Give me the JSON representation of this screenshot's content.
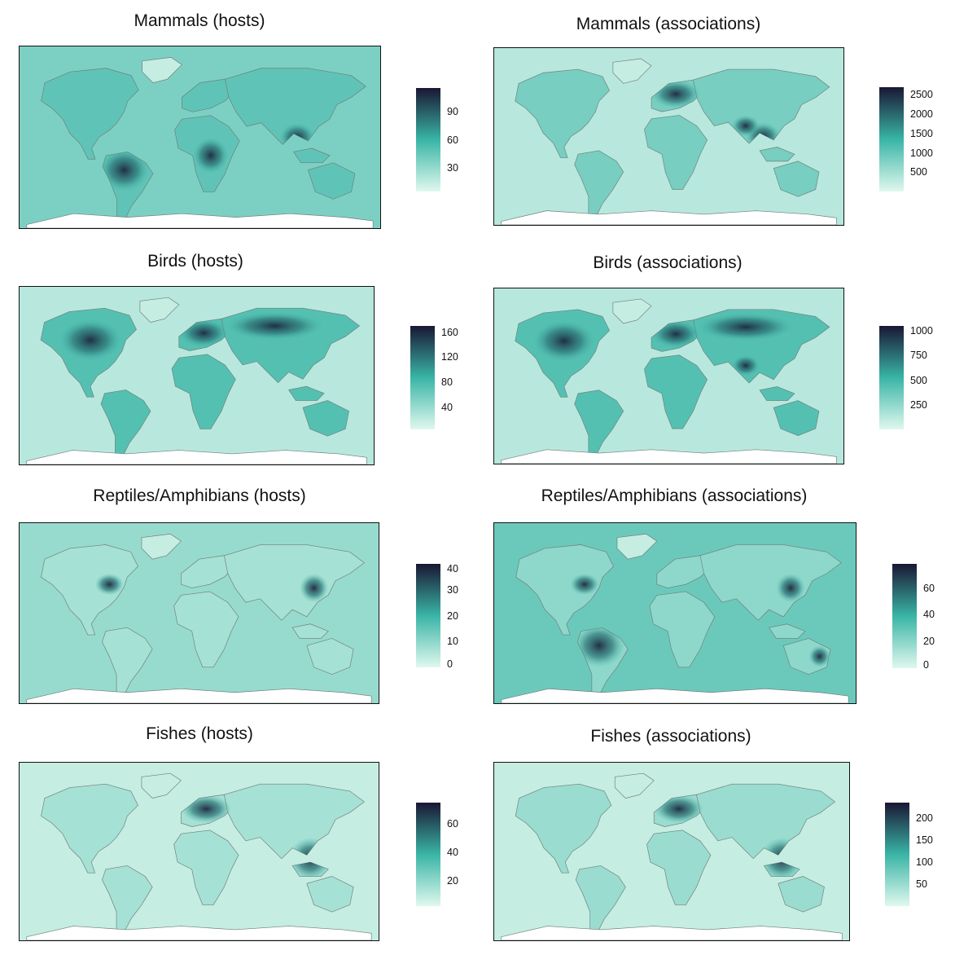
{
  "colors": {
    "low": "#e0f8ee",
    "mid": "#39b5a6",
    "high": "#1a1733",
    "ocean": "#d6f3e7",
    "land_outline": "#6f7d78"
  },
  "panels": [
    {
      "id": "mammals-hosts",
      "title": "Mammals (hosts)",
      "ticks": [
        "90",
        "60",
        "30"
      ],
      "tick_values": [
        90,
        60,
        30
      ],
      "range": [
        5,
        115
      ],
      "density": 0.55,
      "ocean": 0.3,
      "hotspots": [
        "south-america",
        "africa-central",
        "southeast-asia"
      ]
    },
    {
      "id": "mammals-associations",
      "title": "Mammals (associations)",
      "ticks": [
        "2500",
        "2000",
        "1500",
        "1000",
        "500"
      ],
      "tick_values": [
        2500,
        2000,
        1500,
        1000,
        500
      ],
      "range": [
        0,
        2700
      ],
      "density": 0.45,
      "ocean": 0.12,
      "hotspots": [
        "europe",
        "southeast-asia",
        "india"
      ]
    },
    {
      "id": "birds-hosts",
      "title": "Birds (hosts)",
      "ticks": [
        "160",
        "120",
        "80",
        "40"
      ],
      "tick_values": [
        160,
        120,
        80,
        40
      ],
      "range": [
        5,
        170
      ],
      "density": 0.6,
      "ocean": 0.12,
      "hotspots": [
        "north-america",
        "europe",
        "asia-north"
      ]
    },
    {
      "id": "birds-associations",
      "title": "Birds (associations)",
      "ticks": [
        "1000",
        "750",
        "500",
        "250"
      ],
      "tick_values": [
        1000,
        750,
        500,
        250
      ],
      "range": [
        0,
        1050
      ],
      "density": 0.6,
      "ocean": 0.12,
      "hotspots": [
        "north-america",
        "europe",
        "asia-north",
        "india"
      ]
    },
    {
      "id": "reptiles-hosts",
      "title": "Reptiles/Amphibians (hosts)",
      "ticks": [
        "40",
        "30",
        "20",
        "10",
        "0"
      ],
      "tick_values": [
        40,
        30,
        20,
        10,
        0
      ],
      "range": [
        0,
        40
      ],
      "density": 0.25,
      "ocean": 0.22,
      "hotspots": [
        "north-america-east",
        "china-east"
      ]
    },
    {
      "id": "reptiles-associations",
      "title": "Reptiles/Amphibians (associations)",
      "ticks": [
        "60",
        "40",
        "20",
        "0"
      ],
      "tick_values": [
        60,
        40,
        20,
        0
      ],
      "range": [
        0,
        78
      ],
      "density": 0.35,
      "ocean": 0.35,
      "hotspots": [
        "north-america-east",
        "south-america",
        "china-east",
        "australia-east"
      ]
    },
    {
      "id": "fishes-hosts",
      "title": "Fishes (hosts)",
      "ticks": [
        "60",
        "40",
        "20"
      ],
      "tick_values": [
        60,
        40,
        20
      ],
      "range": [
        2,
        75
      ],
      "density": 0.25,
      "ocean": 0.08,
      "hotspots": [
        "southeast-asia-coast",
        "europe"
      ]
    },
    {
      "id": "fishes-associations",
      "title": "Fishes (associations)",
      "ticks": [
        "200",
        "150",
        "100",
        "50"
      ],
      "tick_values": [
        200,
        150,
        100,
        50
      ],
      "range": [
        0,
        235
      ],
      "density": 0.3,
      "ocean": 0.08,
      "hotspots": [
        "europe",
        "southeast-asia-coast"
      ]
    }
  ]
}
